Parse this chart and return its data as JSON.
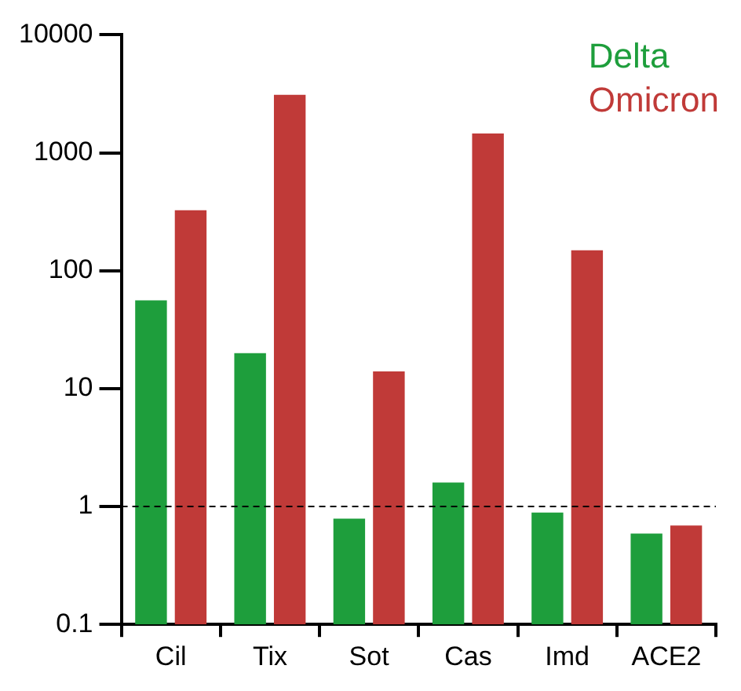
{
  "chart_data": {
    "type": "bar",
    "categories": [
      "Cil",
      "Tix",
      "Sot",
      "Cas",
      "Imd",
      "ACE2"
    ],
    "series": [
      {
        "name": "Delta",
        "color": "#1e9e3c",
        "values": [
          56,
          20,
          0.79,
          1.6,
          0.89,
          0.59
        ]
      },
      {
        "name": "Omicron",
        "color": "#c03a38",
        "values": [
          325,
          3100,
          14,
          1460,
          149,
          0.69
        ]
      }
    ],
    "log": true,
    "ylim": [
      0.1,
      10000
    ],
    "yticks": [
      0.1,
      1,
      10,
      100,
      1000,
      10000
    ],
    "grid": false,
    "legend": "top right",
    "ref_lines": [
      {
        "axis": "y",
        "value": 1,
        "line_style": "dashed",
        "color": "#000000"
      }
    ]
  }
}
